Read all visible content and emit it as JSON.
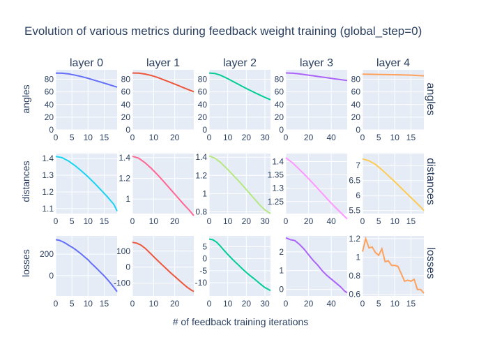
{
  "title": "Evolution of various metrics during feedback weight training (global_step=0)",
  "xlabel": "# of feedback training iterations",
  "columns": [
    "layer 0",
    "layer 1",
    "layer 2",
    "layer 3",
    "layer 4"
  ],
  "rows": [
    "angles",
    "distances",
    "losses"
  ],
  "colors": [
    "#636efa",
    "#EF553B",
    "#00cc96",
    "#ab63fa",
    "#FFA15A"
  ],
  "chart_data": [
    {
      "type": "line",
      "row": "angles",
      "column": "layer 0",
      "color": "#636efa",
      "x_max": 19,
      "xticks": [
        0,
        5,
        10,
        15
      ],
      "ylim": [
        0,
        95
      ],
      "yticks": [
        0,
        20,
        40,
        60,
        80
      ],
      "x": [
        0,
        2,
        4,
        6,
        8,
        10,
        12,
        14,
        16,
        18,
        19
      ],
      "y": [
        89.8,
        89.6,
        88.5,
        86.5,
        84.2,
        81.5,
        78.5,
        75.5,
        72.3,
        69.2,
        67.6
      ]
    },
    {
      "type": "line",
      "row": "angles",
      "column": "layer 1",
      "color": "#EF553B",
      "x_max": 29,
      "xticks": [
        0,
        10,
        20
      ],
      "ylim": [
        0,
        95
      ],
      "yticks": [
        0,
        20,
        40,
        60,
        80
      ],
      "x": [
        0,
        3,
        6,
        9,
        12,
        15,
        18,
        21,
        24,
        27,
        29
      ],
      "y": [
        89.9,
        89.8,
        88.3,
        85.9,
        82.7,
        78.9,
        75.0,
        71.0,
        66.9,
        62.9,
        60.3
      ]
    },
    {
      "type": "line",
      "row": "angles",
      "column": "layer 2",
      "color": "#00cc96",
      "x_max": 33,
      "xticks": [
        0,
        10,
        20,
        30
      ],
      "ylim": [
        0,
        95
      ],
      "yticks": [
        0,
        20,
        40,
        60,
        80
      ],
      "x": [
        0,
        3,
        6,
        9,
        12,
        15,
        18,
        21,
        24,
        27,
        30,
        33
      ],
      "y": [
        89.9,
        89.3,
        86.5,
        82.4,
        77.9,
        73.2,
        68.5,
        64.0,
        59.6,
        55.4,
        51.4,
        47.6
      ]
    },
    {
      "type": "line",
      "row": "angles",
      "column": "layer 3",
      "color": "#ab63fa",
      "x_max": 54,
      "xticks": [
        0,
        20,
        40
      ],
      "ylim": [
        0,
        95
      ],
      "yticks": [
        0,
        20,
        40,
        60,
        80
      ],
      "x": [
        0,
        6,
        12,
        18,
        24,
        30,
        36,
        42,
        48,
        54
      ],
      "y": [
        90.0,
        89.6,
        88.5,
        87.1,
        85.6,
        84.0,
        82.5,
        81.0,
        79.5,
        78.2
      ]
    },
    {
      "type": "line",
      "row": "angles",
      "column": "layer 4",
      "color": "#FFA15A",
      "x_max": 19,
      "xticks": [
        0,
        5,
        10,
        15
      ],
      "ylim": [
        0,
        95
      ],
      "yticks": [
        0,
        20,
        40,
        60,
        80
      ],
      "x": [
        0,
        3,
        6,
        9,
        12,
        15,
        17,
        19
      ],
      "y": [
        88.1,
        87.8,
        87.6,
        87.3,
        87.0,
        86.6,
        86.0,
        85.5
      ]
    },
    {
      "type": "line",
      "row": "distances",
      "column": "layer 0",
      "color": "#19d3f3",
      "x_max": 19,
      "xticks": [
        0,
        5,
        10,
        15
      ],
      "ylim": [
        1.07,
        1.43
      ],
      "yticks": [
        1.1,
        1.2,
        1.3,
        1.4
      ],
      "x": [
        0,
        2,
        4,
        6,
        8,
        10,
        12,
        14,
        16,
        18,
        19
      ],
      "y": [
        1.413,
        1.405,
        1.385,
        1.357,
        1.325,
        1.29,
        1.252,
        1.212,
        1.17,
        1.125,
        1.085
      ]
    },
    {
      "type": "line",
      "row": "distances",
      "column": "layer 1",
      "color": "#FF6692",
      "x_max": 29,
      "xticks": [
        0,
        10,
        20
      ],
      "ylim": [
        0.86,
        1.44
      ],
      "yticks": [
        1,
        1.2,
        1.4
      ],
      "x": [
        0,
        3,
        6,
        9,
        12,
        15,
        18,
        21,
        24,
        27,
        29
      ],
      "y": [
        1.414,
        1.395,
        1.35,
        1.295,
        1.232,
        1.165,
        1.095,
        1.025,
        0.955,
        0.89,
        0.84
      ]
    },
    {
      "type": "line",
      "row": "distances",
      "column": "layer 2",
      "color": "#B6E880",
      "x_max": 33,
      "xticks": [
        0,
        10,
        20,
        30
      ],
      "ylim": [
        0.78,
        1.44
      ],
      "yticks": [
        0.8,
        1,
        1.2,
        1.4
      ],
      "x": [
        0,
        3,
        6,
        9,
        12,
        15,
        18,
        21,
        24,
        27,
        30,
        33
      ],
      "y": [
        1.414,
        1.39,
        1.345,
        1.285,
        1.222,
        1.158,
        1.09,
        1.02,
        0.95,
        0.88,
        0.82,
        0.78
      ]
    },
    {
      "type": "line",
      "row": "distances",
      "column": "layer 3",
      "color": "#FF97FF",
      "x_max": 54,
      "xticks": [
        0,
        20,
        40
      ],
      "ylim": [
        1.205,
        1.43
      ],
      "yticks": [
        1.25,
        1.3,
        1.35,
        1.4
      ],
      "x": [
        0,
        6,
        12,
        18,
        24,
        30,
        36,
        42,
        48,
        54
      ],
      "y": [
        1.414,
        1.395,
        1.37,
        1.345,
        1.318,
        1.29,
        1.262,
        1.235,
        1.21,
        1.185
      ]
    },
    {
      "type": "line",
      "row": "distances",
      "column": "layer 4",
      "color": "#FECB52",
      "x_max": 19,
      "xticks": [
        0,
        5,
        10,
        15
      ],
      "ylim": [
        5.4,
        7.4
      ],
      "yticks": [
        5.5,
        6,
        6.5,
        7
      ],
      "x": [
        0,
        2,
        4,
        6,
        8,
        10,
        12,
        14,
        16,
        18,
        19
      ],
      "y": [
        7.22,
        7.16,
        7.04,
        6.86,
        6.66,
        6.46,
        6.25,
        6.04,
        5.83,
        5.62,
        5.5
      ]
    },
    {
      "type": "line",
      "row": "losses",
      "column": "layer 0",
      "color": "#636efa",
      "x_max": 19,
      "xticks": [
        0,
        5,
        10,
        15
      ],
      "ylim": [
        -190,
        370
      ],
      "yticks": [
        0,
        200
      ],
      "x": [
        0,
        1,
        2,
        3,
        4,
        5,
        6,
        7,
        8,
        9,
        10,
        11,
        12,
        13,
        14,
        15,
        16,
        17,
        18,
        19
      ],
      "y": [
        335,
        330,
        318,
        302,
        283,
        265,
        245,
        222,
        198,
        172,
        147,
        115,
        87,
        57,
        27,
        -3,
        -36,
        -72,
        -110,
        -150
      ]
    },
    {
      "type": "line",
      "row": "losses",
      "column": "layer 1",
      "color": "#EF553B",
      "x_max": 29,
      "xticks": [
        0,
        10,
        20
      ],
      "ylim": [
        -180,
        195
      ],
      "yticks": [
        -100,
        0,
        100
      ],
      "x": [
        0,
        2,
        4,
        6,
        8,
        10,
        12,
        14,
        16,
        18,
        20,
        22,
        24,
        26,
        28,
        29
      ],
      "y": [
        155,
        150,
        138,
        118,
        92,
        66,
        40,
        15,
        -10,
        -35,
        -58,
        -82,
        -105,
        -127,
        -145,
        -152
      ]
    },
    {
      "type": "line",
      "row": "losses",
      "column": "layer 2",
      "color": "#00cc96",
      "x_max": 33,
      "xticks": [
        0,
        10,
        20,
        30
      ],
      "ylim": [
        -15.5,
        9.5
      ],
      "yticks": [
        -10,
        -5,
        0,
        5
      ],
      "x": [
        0,
        2,
        4,
        6,
        8,
        10,
        12,
        14,
        16,
        18,
        20,
        22,
        24,
        26,
        28,
        30,
        32,
        33
      ],
      "y": [
        8.2,
        7.9,
        6.9,
        5.3,
        3.5,
        1.8,
        0.2,
        -1.3,
        -2.8,
        -4.3,
        -5.7,
        -7.0,
        -8.2,
        -9.5,
        -10.8,
        -12.0,
        -12.8,
        -13.3
      ]
    },
    {
      "type": "line",
      "row": "losses",
      "column": "layer 3",
      "color": "#ab63fa",
      "x_max": 54,
      "xticks": [
        0,
        20,
        40
      ],
      "ylim": [
        -0.35,
        2.85
      ],
      "yticks": [
        0,
        1,
        2
      ],
      "x": [
        0,
        4,
        8,
        12,
        16,
        20,
        24,
        28,
        32,
        36,
        40,
        44,
        48,
        50,
        52,
        54
      ],
      "y": [
        2.75,
        2.65,
        2.6,
        2.4,
        2.15,
        1.85,
        1.55,
        1.3,
        1.0,
        0.75,
        0.55,
        0.35,
        0.15,
        0.02,
        -0.1,
        -0.18
      ]
    },
    {
      "type": "line",
      "row": "losses",
      "column": "layer 4",
      "color": "#FFA15A",
      "x_max": 19,
      "xticks": [
        0,
        5,
        10,
        15
      ],
      "ylim": [
        0.58,
        1.23
      ],
      "yticks": [
        0.6,
        0.8,
        1,
        1.2
      ],
      "x": [
        0,
        1,
        2,
        3,
        4,
        5,
        6,
        7,
        8,
        9,
        10,
        11,
        12,
        13,
        14,
        15,
        16,
        17,
        18,
        19
      ],
      "y": [
        1.06,
        1.2,
        1.1,
        1.11,
        1.05,
        1.02,
        1.09,
        0.95,
        0.96,
        0.91,
        0.91,
        0.9,
        0.82,
        0.74,
        0.75,
        0.74,
        0.76,
        0.65,
        0.65,
        0.61
      ]
    }
  ]
}
